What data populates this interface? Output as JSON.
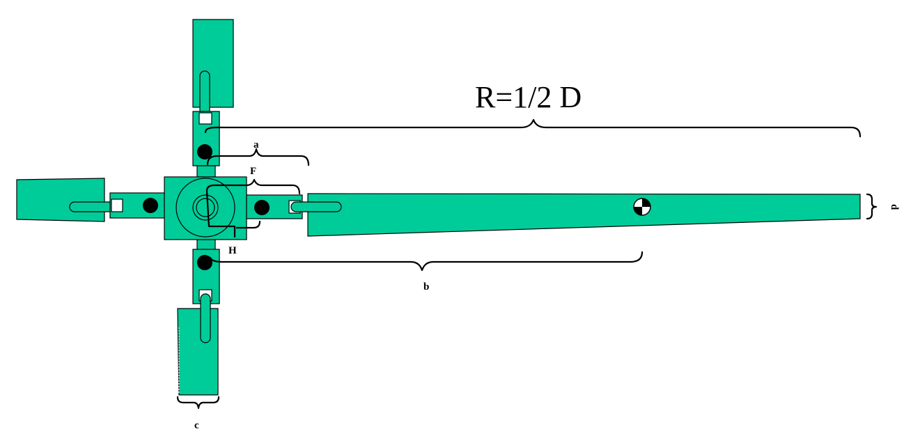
{
  "diagram": {
    "colors": {
      "blade": "#00cc99",
      "outline": "#000000",
      "background": "#ffffff",
      "pin": "#000000",
      "slot": "#ffffff"
    },
    "labels": {
      "radius": "R=1/2 D",
      "a": "a",
      "b": "b",
      "c": "c",
      "d": "d",
      "F": "F",
      "H": "H"
    },
    "icons": {
      "center_of_gravity": "center-of-gravity-icon"
    }
  }
}
